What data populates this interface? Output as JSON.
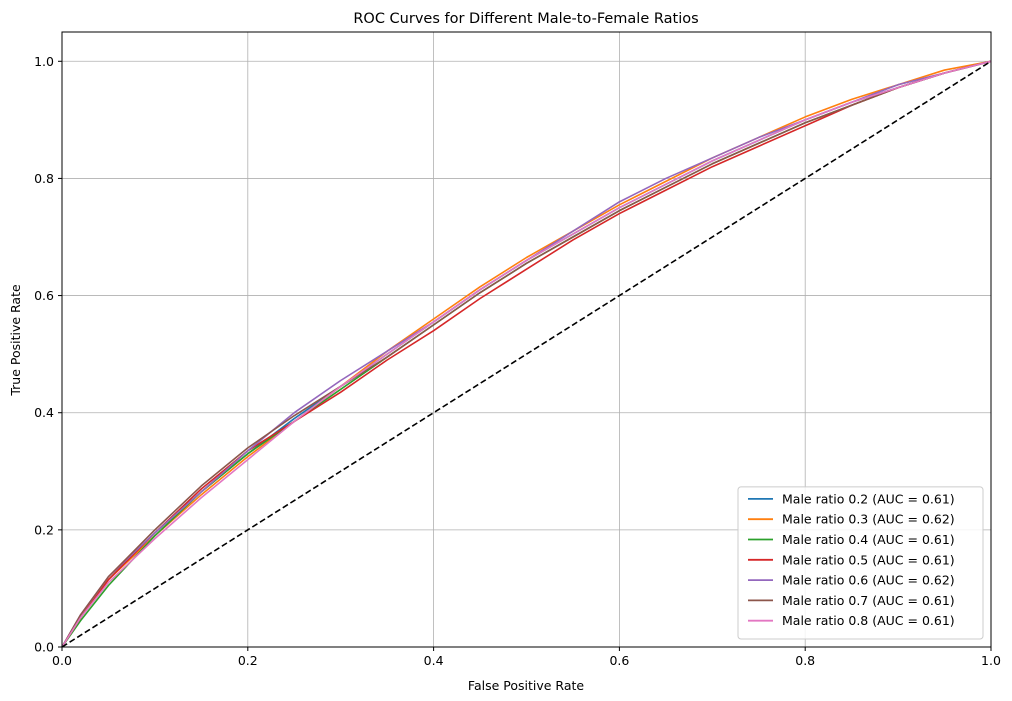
{
  "chart_data": {
    "type": "line",
    "title": "ROC Curves for Different Male-to-Female Ratios",
    "xlabel": "False Positive Rate",
    "ylabel": "True Positive Rate",
    "xlim": [
      0,
      1
    ],
    "ylim": [
      0,
      1.05
    ],
    "xticks": [
      "0.0",
      "0.2",
      "0.4",
      "0.6",
      "0.8",
      "1.0"
    ],
    "yticks": [
      "0.0",
      "0.2",
      "0.4",
      "0.6",
      "0.8",
      "1.0"
    ],
    "grid": true,
    "legend_position": "lower-right",
    "reference_line": {
      "x": [
        0,
        1
      ],
      "y": [
        0,
        1
      ],
      "color": "#000000",
      "style": "dashed"
    },
    "series": [
      {
        "name": "Male ratio 0.2 (AUC = 0.61)",
        "color": "#1f77b4",
        "x": [
          0,
          0.02,
          0.05,
          0.1,
          0.15,
          0.2,
          0.25,
          0.3,
          0.35,
          0.4,
          0.45,
          0.5,
          0.55,
          0.6,
          0.65,
          0.7,
          0.75,
          0.8,
          0.85,
          0.9,
          0.95,
          1.0
        ],
        "y": [
          0,
          0.05,
          0.115,
          0.195,
          0.265,
          0.33,
          0.39,
          0.445,
          0.5,
          0.555,
          0.61,
          0.66,
          0.705,
          0.75,
          0.79,
          0.83,
          0.865,
          0.9,
          0.93,
          0.955,
          0.98,
          1.0
        ]
      },
      {
        "name": "Male ratio 0.3 (AUC = 0.62)",
        "color": "#ff7f0e",
        "x": [
          0,
          0.02,
          0.05,
          0.1,
          0.15,
          0.2,
          0.25,
          0.3,
          0.35,
          0.4,
          0.45,
          0.5,
          0.55,
          0.6,
          0.65,
          0.7,
          0.75,
          0.8,
          0.85,
          0.9,
          0.95,
          1.0
        ],
        "y": [
          0,
          0.05,
          0.115,
          0.19,
          0.26,
          0.325,
          0.385,
          0.445,
          0.505,
          0.56,
          0.615,
          0.665,
          0.71,
          0.755,
          0.795,
          0.835,
          0.87,
          0.905,
          0.935,
          0.96,
          0.985,
          1.0
        ]
      },
      {
        "name": "Male ratio 0.4 (AUC = 0.61)",
        "color": "#2ca02c",
        "x": [
          0,
          0.02,
          0.05,
          0.1,
          0.15,
          0.2,
          0.25,
          0.3,
          0.35,
          0.4,
          0.45,
          0.5,
          0.55,
          0.6,
          0.65,
          0.7,
          0.75,
          0.8,
          0.85,
          0.9,
          0.95,
          1.0
        ],
        "y": [
          0,
          0.045,
          0.105,
          0.19,
          0.265,
          0.33,
          0.385,
          0.44,
          0.495,
          0.55,
          0.605,
          0.655,
          0.7,
          0.745,
          0.785,
          0.825,
          0.86,
          0.895,
          0.925,
          0.955,
          0.98,
          1.0
        ]
      },
      {
        "name": "Male ratio 0.5 (AUC = 0.61)",
        "color": "#d62728",
        "x": [
          0,
          0.02,
          0.05,
          0.1,
          0.15,
          0.2,
          0.25,
          0.3,
          0.35,
          0.4,
          0.45,
          0.5,
          0.55,
          0.6,
          0.65,
          0.7,
          0.75,
          0.8,
          0.85,
          0.9,
          0.95,
          1.0
        ],
        "y": [
          0,
          0.05,
          0.115,
          0.195,
          0.27,
          0.335,
          0.385,
          0.435,
          0.49,
          0.54,
          0.595,
          0.645,
          0.695,
          0.74,
          0.78,
          0.82,
          0.855,
          0.89,
          0.925,
          0.955,
          0.98,
          1.0
        ]
      },
      {
        "name": "Male ratio 0.6 (AUC = 0.62)",
        "color": "#9467bd",
        "x": [
          0,
          0.02,
          0.05,
          0.1,
          0.15,
          0.2,
          0.25,
          0.3,
          0.35,
          0.4,
          0.45,
          0.5,
          0.55,
          0.6,
          0.65,
          0.7,
          0.75,
          0.8,
          0.85,
          0.9,
          0.95,
          1.0
        ],
        "y": [
          0,
          0.055,
          0.12,
          0.195,
          0.265,
          0.335,
          0.4,
          0.455,
          0.505,
          0.555,
          0.61,
          0.66,
          0.71,
          0.76,
          0.8,
          0.835,
          0.87,
          0.9,
          0.93,
          0.96,
          0.98,
          1.0
        ]
      },
      {
        "name": "Male ratio 0.7 (AUC = 0.61)",
        "color": "#8c564b",
        "x": [
          0,
          0.02,
          0.05,
          0.1,
          0.15,
          0.2,
          0.25,
          0.3,
          0.35,
          0.4,
          0.45,
          0.5,
          0.55,
          0.6,
          0.65,
          0.7,
          0.75,
          0.8,
          0.85,
          0.9,
          0.95,
          1.0
        ],
        "y": [
          0,
          0.055,
          0.12,
          0.2,
          0.275,
          0.34,
          0.395,
          0.445,
          0.495,
          0.55,
          0.605,
          0.655,
          0.7,
          0.745,
          0.785,
          0.825,
          0.86,
          0.895,
          0.925,
          0.955,
          0.98,
          1.0
        ]
      },
      {
        "name": "Male ratio 0.8 (AUC = 0.61)",
        "color": "#e377c2",
        "x": [
          0,
          0.02,
          0.05,
          0.1,
          0.15,
          0.2,
          0.25,
          0.3,
          0.35,
          0.4,
          0.45,
          0.5,
          0.55,
          0.6,
          0.65,
          0.7,
          0.75,
          0.8,
          0.85,
          0.9,
          0.95,
          1.0
        ],
        "y": [
          0,
          0.05,
          0.11,
          0.185,
          0.255,
          0.32,
          0.385,
          0.445,
          0.5,
          0.555,
          0.61,
          0.66,
          0.705,
          0.75,
          0.79,
          0.83,
          0.865,
          0.9,
          0.93,
          0.955,
          0.98,
          1.0
        ]
      }
    ]
  }
}
